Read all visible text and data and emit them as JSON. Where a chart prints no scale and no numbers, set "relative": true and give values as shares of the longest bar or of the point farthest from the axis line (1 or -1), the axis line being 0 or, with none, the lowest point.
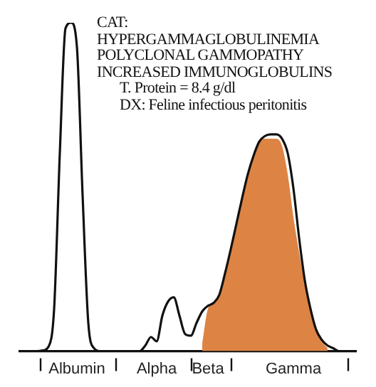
{
  "chart_data": {
    "type": "line",
    "relative": true,
    "categories": [
      null,
      null,
      null,
      null,
      null,
      null,
      null,
      null,
      null,
      null,
      "Albumin",
      null,
      null,
      null,
      null,
      null,
      null,
      null,
      null,
      null,
      null,
      null,
      null,
      null,
      "Alpha",
      null,
      null,
      null,
      null,
      null,
      null,
      null,
      null,
      "Beta",
      null,
      null,
      null,
      null,
      null,
      null,
      null,
      null,
      null,
      null,
      null,
      null,
      null,
      null,
      "Gamma",
      null,
      null,
      null,
      null,
      null,
      null,
      null,
      null,
      null,
      null,
      null
    ],
    "series": [
      {
        "type": "area",
        "color": "#dd8444",
        "values": [
          null,
          null,
          null,
          null,
          null,
          null,
          null,
          null,
          null,
          null,
          null,
          null,
          null,
          null,
          null,
          null,
          null,
          null,
          null,
          null,
          null,
          null,
          null,
          null,
          null,
          null,
          null,
          null,
          null,
          null,
          null,
          null,
          0.022,
          0.129,
          0.147,
          0.172,
          0.237,
          0.31,
          0.388,
          0.466,
          0.539,
          0.595,
          0.638,
          0.647,
          0.647,
          0.647,
          0.625,
          0.539,
          0.409,
          0.302,
          0.207,
          0.129,
          0.065,
          0.03,
          0.009,
          null,
          null,
          null,
          null,
          null
        ]
      },
      {
        "type": "line",
        "color": "#111111",
        "values": [
          0,
          0,
          0,
          0,
          0.002,
          0.013,
          0.129,
          0.603,
          0.983,
          1,
          0.927,
          0.474,
          0.086,
          0.009,
          0,
          0,
          0,
          0,
          0,
          0,
          0,
          0,
          0.017,
          0.043,
          0.03,
          0.108,
          0.151,
          0.164,
          0.108,
          0.052,
          0.047,
          0.086,
          0.121,
          0.138,
          0.147,
          0.172,
          0.237,
          0.31,
          0.388,
          0.466,
          0.539,
          0.595,
          0.638,
          0.655,
          0.66,
          0.66,
          0.647,
          0.603,
          0.496,
          0.345,
          0.216,
          0.129,
          0.065,
          0.034,
          0.017,
          0.009,
          0,
          0,
          0,
          0
        ]
      }
    ],
    "annotations": [
      "CAT:",
      "HYPERGAMMAGLOBULINEMIA",
      "POLYCLONAL GAMMOPATHY",
      "INCREASED IMMUNOGLOBULINS",
      "T. Protein = 8.4 g/dl",
      "DX: Feline infectious peritonitis"
    ],
    "grid": false,
    "legend": false,
    "marker": "none",
    "line_style": "solid"
  }
}
